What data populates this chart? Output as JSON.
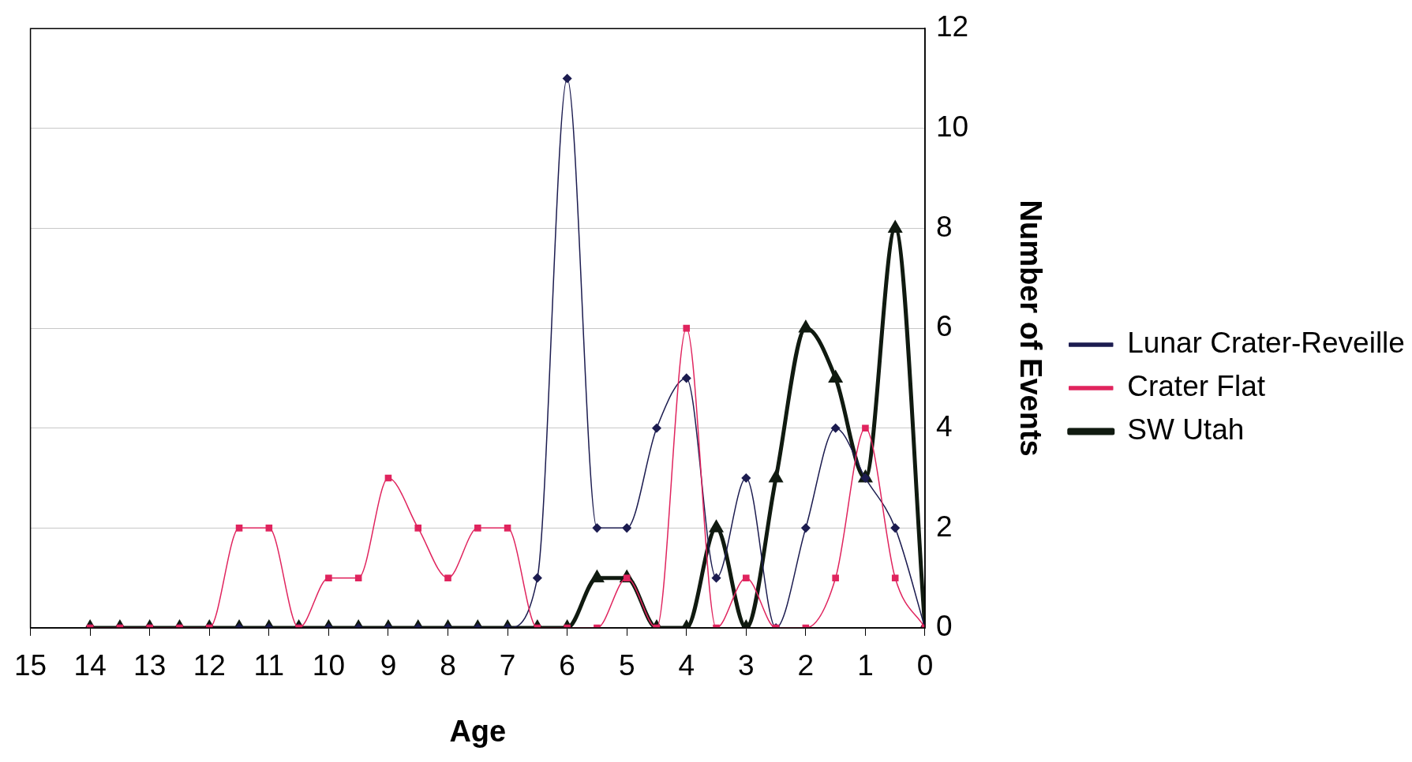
{
  "chart_data": {
    "type": "line",
    "xlabel": "Age",
    "ylabel": "Number of Events",
    "x": [
      14,
      13.5,
      13,
      12.5,
      12,
      11.5,
      11,
      10.5,
      10,
      9.5,
      9,
      8.5,
      8,
      7.5,
      7,
      6.5,
      6,
      5.5,
      5,
      4.5,
      4,
      3.5,
      3,
      2.5,
      2,
      1.5,
      1,
      0.5,
      0
    ],
    "xlim": [
      15,
      0
    ],
    "xticks": [
      15,
      14,
      13,
      12,
      11,
      10,
      9,
      8,
      7,
      6,
      5,
      4,
      3,
      2,
      1,
      0
    ],
    "ylim": [
      0,
      12
    ],
    "yticks": [
      0,
      2,
      4,
      6,
      8,
      10,
      12
    ],
    "grid": "y",
    "legend": "right",
    "series": [
      {
        "name": "Lunar Crater-Reveille",
        "color": "#1c1c50",
        "marker": "diamond",
        "values": [
          0,
          0,
          0,
          0,
          0,
          0,
          0,
          0,
          0,
          0,
          0,
          0,
          0,
          0,
          0,
          1,
          11,
          2,
          2,
          4,
          5,
          1,
          3,
          0,
          2,
          4,
          3,
          2,
          0
        ]
      },
      {
        "name": "Crater Flat",
        "color": "#e0245e",
        "marker": "square",
        "values": [
          0,
          0,
          0,
          0,
          0,
          2,
          2,
          0,
          1,
          1,
          3,
          2,
          1,
          2,
          2,
          0,
          0,
          0,
          1,
          0,
          6,
          0,
          1,
          0,
          0,
          1,
          4,
          1,
          0
        ]
      },
      {
        "name": "SW Utah",
        "color": "#101a10",
        "marker": "triangle",
        "values": [
          0,
          0,
          0,
          0,
          0,
          0,
          0,
          0,
          0,
          0,
          0,
          0,
          0,
          0,
          0,
          0,
          0,
          1,
          1,
          0,
          0,
          2,
          0,
          3,
          6,
          5,
          3,
          8,
          0
        ]
      }
    ]
  }
}
